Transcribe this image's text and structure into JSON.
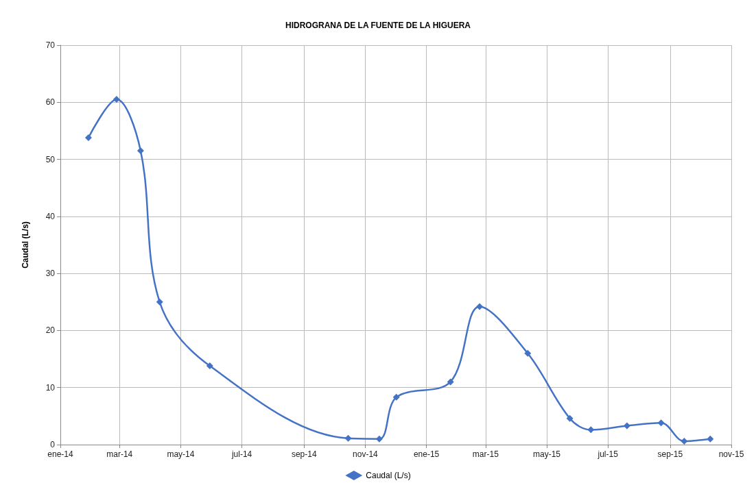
{
  "chart_data": {
    "type": "line",
    "title": "HIDROGRANA DE LA FUENTE DE LA HIGUERA",
    "ylabel": "Caudal (L/s)",
    "x": [
      "2014-01-29",
      "2014-02-26",
      "2014-03-22",
      "2014-04-10",
      "2014-05-30",
      "2014-10-15",
      "2014-11-15",
      "2014-12-02",
      "2015-01-25",
      "2015-02-23",
      "2015-04-12",
      "2015-05-24",
      "2015-06-14",
      "2015-07-20",
      "2015-08-23",
      "2015-09-15",
      "2015-10-11"
    ],
    "series": [
      {
        "name": "Caudal (L/s)",
        "color": "#4472c4",
        "values": [
          53.8,
          60.5,
          51.5,
          25.0,
          13.8,
          1.1,
          1.0,
          8.3,
          11.0,
          24.2,
          16.0,
          4.6,
          2.6,
          3.3,
          3.8,
          0.6,
          1.0
        ]
      }
    ],
    "xlim": [
      "2014-01-01",
      "2015-11-01"
    ],
    "xticks": [
      {
        "value": "2014-01-01",
        "label": "ene-14"
      },
      {
        "value": "2014-03-01",
        "label": "mar-14"
      },
      {
        "value": "2014-05-01",
        "label": "may-14"
      },
      {
        "value": "2014-07-01",
        "label": "jul-14"
      },
      {
        "value": "2014-09-01",
        "label": "sep-14"
      },
      {
        "value": "2014-11-01",
        "label": "nov-14"
      },
      {
        "value": "2015-01-01",
        "label": "ene-15"
      },
      {
        "value": "2015-03-01",
        "label": "mar-15"
      },
      {
        "value": "2015-05-01",
        "label": "may-15"
      },
      {
        "value": "2015-07-01",
        "label": "jul-15"
      },
      {
        "value": "2015-09-01",
        "label": "sep-15"
      },
      {
        "value": "2015-11-01",
        "label": "nov-15"
      }
    ],
    "ylim": [
      0,
      70
    ],
    "yticks": [
      0,
      10,
      20,
      30,
      40,
      50,
      60,
      70
    ],
    "grid": true,
    "legend": "bottom",
    "marker": "diamond",
    "line_style": "solid"
  }
}
